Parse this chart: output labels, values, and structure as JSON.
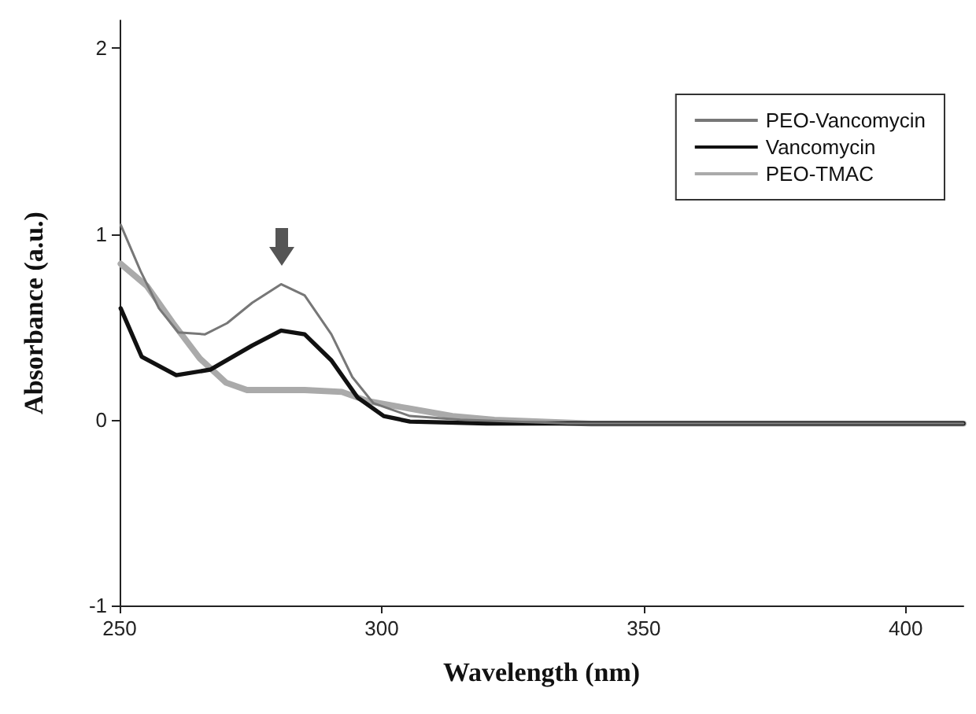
{
  "chart_data": {
    "type": "line",
    "xlabel": "Wavelength (nm)",
    "ylabel": "Absorbance (a.u.)",
    "xlim": [
      250,
      411
    ],
    "xticks": [
      250,
      300,
      350,
      400
    ],
    "ylim": [
      -1,
      2.15
    ],
    "yticks": [
      -1,
      0,
      1,
      2
    ],
    "grid": false,
    "legend": "top right",
    "marker": "none",
    "line_style": "solid",
    "series": [
      {
        "name": "PEO-Vancomycin",
        "color": "#777777",
        "x": [
          250.2,
          254,
          257.5,
          261.2,
          266.3,
          270.5,
          275.3,
          280.8,
          285.3,
          290.4,
          294.4,
          298.4,
          305.4,
          315,
          335.5,
          411
        ],
        "values": [
          1.05,
          0.8,
          0.6,
          0.47,
          0.46,
          0.52,
          0.63,
          0.73,
          0.67,
          0.46,
          0.23,
          0.09,
          0.02,
          0,
          -0.02,
          -0.02
        ]
      },
      {
        "name": "Vancomycin",
        "color": "#111111",
        "x": [
          250.2,
          254.2,
          260.8,
          267.3,
          275.3,
          280.8,
          285.3,
          290.4,
          295.4,
          300.4,
          305.4,
          320,
          411
        ],
        "values": [
          0.6,
          0.34,
          0.24,
          0.27,
          0.4,
          0.48,
          0.46,
          0.32,
          0.12,
          0.02,
          -0.01,
          -0.02,
          -0.02
        ]
      },
      {
        "name": "PEO-TMAC",
        "color": "#aaaaaa",
        "x": [
          250.2,
          255.2,
          260.2,
          265.3,
          270.3,
          274.3,
          285.3,
          292.4,
          297.4,
          305.4,
          313.5,
          321.5,
          340,
          411
        ],
        "values": [
          0.84,
          0.72,
          0.52,
          0.33,
          0.2,
          0.16,
          0.16,
          0.15,
          0.1,
          0.06,
          0.02,
          0,
          -0.02,
          -0.02
        ]
      }
    ]
  }
}
